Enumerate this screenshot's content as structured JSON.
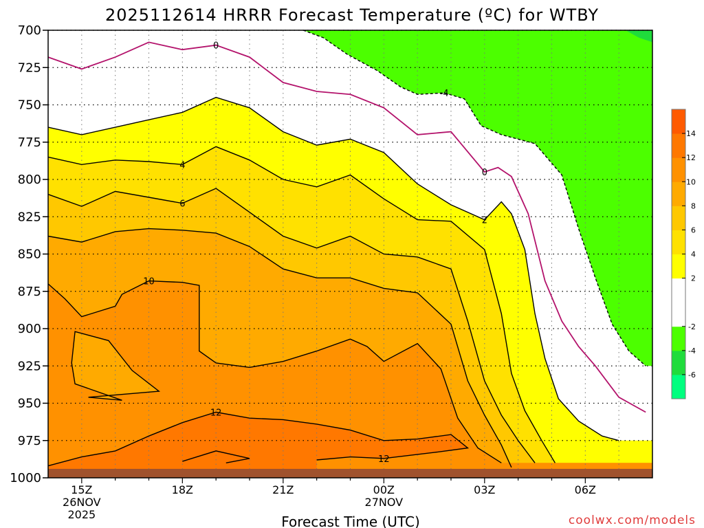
{
  "chart_data": {
    "type": "heatmap",
    "title": "2025112614 HRRR Forecast Temperature (ºC) for WTBY",
    "xlabel": "Forecast Time (UTC)",
    "ylabel": "",
    "credit": "coolwx.com/models",
    "y_axis": {
      "ticks": [
        700,
        725,
        750,
        775,
        800,
        825,
        850,
        875,
        900,
        925,
        950,
        975,
        1000
      ],
      "ylim": [
        1000,
        700
      ],
      "grid": true
    },
    "x_axis": {
      "ticks": [
        {
          "hour": 15,
          "label": "15Z",
          "date": "26NOV",
          "year": "2025"
        },
        {
          "hour": 18,
          "label": "18Z",
          "date": "",
          "year": ""
        },
        {
          "hour": 21,
          "label": "21Z",
          "date": "",
          "year": ""
        },
        {
          "hour": 24,
          "label": "00Z",
          "date": "27NOV",
          "year": ""
        },
        {
          "hour": 27,
          "label": "03Z",
          "date": "",
          "year": ""
        },
        {
          "hour": 30,
          "label": "06Z",
          "date": "",
          "year": ""
        }
      ],
      "xlim": [
        14,
        32
      ]
    },
    "colorbar": {
      "levels": [
        -8,
        -6,
        -4,
        -2,
        0,
        2,
        4,
        6,
        8,
        10,
        12,
        14,
        16
      ],
      "labels": [
        "-6",
        "-4",
        "-2",
        "2",
        "4",
        "6",
        "8",
        "10",
        "12",
        "14"
      ],
      "colors": [
        "#00ff7f",
        "#1fdc3c",
        "#4cff00",
        "#ffffff",
        "#ffffff",
        "#ffff00",
        "#ffe100",
        "#ffc800",
        "#ffaa00",
        "#ff9100",
        "#ff7800",
        "#ff5a00"
      ]
    },
    "series": [
      {
        "level": -4,
        "style": "dashed",
        "color": "#000000",
        "label": "-4",
        "points": [
          [
            21.6,
            700
          ],
          [
            22.2,
            705
          ],
          [
            22.9,
            716
          ],
          [
            23.8,
            727
          ],
          [
            24.5,
            738
          ],
          [
            25.0,
            743
          ],
          [
            25.8,
            742
          ],
          [
            26.4,
            746
          ],
          [
            26.9,
            764
          ],
          [
            27.5,
            770
          ],
          [
            28.5,
            776
          ],
          [
            29.3,
            797
          ],
          [
            29.8,
            833
          ],
          [
            30.3,
            866
          ],
          [
            30.8,
            897
          ],
          [
            31.3,
            915
          ],
          [
            31.8,
            925
          ]
        ]
      },
      {
        "level": 0,
        "style": "solid",
        "color": "#b3126b",
        "label": "0",
        "points": [
          [
            14.0,
            718
          ],
          [
            15.0,
            726
          ],
          [
            16.0,
            718
          ],
          [
            17.0,
            708
          ],
          [
            18.0,
            713
          ],
          [
            19.0,
            710
          ],
          [
            20.0,
            718
          ],
          [
            21.0,
            735
          ],
          [
            22.0,
            741
          ],
          [
            23.0,
            743
          ],
          [
            24.0,
            752
          ],
          [
            25.0,
            770
          ],
          [
            26.0,
            768
          ],
          [
            27.0,
            795
          ],
          [
            27.4,
            792
          ],
          [
            27.8,
            798
          ],
          [
            28.3,
            823
          ],
          [
            28.8,
            868
          ],
          [
            29.3,
            895
          ],
          [
            29.8,
            912
          ],
          [
            30.3,
            925
          ],
          [
            31.0,
            946
          ],
          [
            31.8,
            956
          ]
        ]
      },
      {
        "level": 2,
        "style": "solid",
        "color": "#000000",
        "label": "2",
        "points": [
          [
            14.0,
            765
          ],
          [
            15.0,
            770
          ],
          [
            16.0,
            765
          ],
          [
            17.0,
            760
          ],
          [
            18.0,
            755
          ],
          [
            19.0,
            745
          ],
          [
            20.0,
            752
          ],
          [
            21.0,
            768
          ],
          [
            22.0,
            777
          ],
          [
            23.0,
            773
          ],
          [
            24.0,
            782
          ],
          [
            25.0,
            803
          ],
          [
            26.0,
            817
          ],
          [
            27.0,
            827
          ],
          [
            27.5,
            815
          ],
          [
            27.8,
            823
          ],
          [
            28.2,
            847
          ],
          [
            28.5,
            890
          ],
          [
            28.8,
            920
          ],
          [
            29.2,
            947
          ],
          [
            29.8,
            962
          ],
          [
            30.5,
            972
          ],
          [
            31.0,
            975
          ]
        ]
      },
      {
        "level": 4,
        "style": "solid",
        "color": "#000000",
        "label": "4",
        "points": [
          [
            14.0,
            785
          ],
          [
            15.0,
            790
          ],
          [
            16.0,
            787
          ],
          [
            17.0,
            788
          ],
          [
            18.0,
            790
          ],
          [
            19.0,
            778
          ],
          [
            20.0,
            787
          ],
          [
            21.0,
            800
          ],
          [
            22.0,
            805
          ],
          [
            23.0,
            797
          ],
          [
            24.0,
            813
          ],
          [
            25.0,
            827
          ],
          [
            26.0,
            828
          ],
          [
            27.0,
            847
          ],
          [
            27.5,
            890
          ],
          [
            27.8,
            930
          ],
          [
            28.2,
            955
          ],
          [
            28.7,
            975
          ],
          [
            29.1,
            990
          ]
        ]
      },
      {
        "level": 6,
        "style": "solid",
        "color": "#000000",
        "label": "6",
        "points": [
          [
            14.0,
            810
          ],
          [
            15.0,
            818
          ],
          [
            16.0,
            808
          ],
          [
            17.0,
            812
          ],
          [
            18.0,
            816
          ],
          [
            19.0,
            806
          ],
          [
            20.0,
            822
          ],
          [
            21.0,
            838
          ],
          [
            22.0,
            846
          ],
          [
            23.0,
            838
          ],
          [
            24.0,
            850
          ],
          [
            25.0,
            852
          ],
          [
            26.0,
            860
          ],
          [
            26.5,
            895
          ],
          [
            27.0,
            935
          ],
          [
            27.5,
            958
          ],
          [
            28.0,
            975
          ],
          [
            28.5,
            990
          ]
        ]
      },
      {
        "level": 8,
        "style": "solid",
        "color": "#000000",
        "label": "8",
        "points": [
          [
            14.0,
            838
          ],
          [
            15.0,
            842
          ],
          [
            16.0,
            835
          ],
          [
            17.0,
            833
          ],
          [
            18.0,
            834
          ],
          [
            19.0,
            836
          ],
          [
            20.0,
            845
          ],
          [
            21.0,
            860
          ],
          [
            22.0,
            866
          ],
          [
            23.0,
            866
          ],
          [
            24.0,
            873
          ],
          [
            25.0,
            876
          ],
          [
            26.0,
            897
          ],
          [
            26.5,
            935
          ],
          [
            27.0,
            958
          ],
          [
            27.5,
            978
          ],
          [
            27.8,
            993
          ]
        ]
      },
      {
        "level": 10,
        "style": "solid",
        "color": "#000000",
        "label": "10",
        "points": [
          [
            14.0,
            870
          ],
          [
            14.5,
            880
          ],
          [
            15.0,
            892
          ],
          [
            16.0,
            885
          ],
          [
            16.2,
            877
          ],
          [
            17.0,
            868
          ],
          [
            18.0,
            869
          ],
          [
            18.5,
            871
          ],
          [
            18.5,
            915
          ],
          [
            19.0,
            923
          ],
          [
            20.0,
            926
          ],
          [
            21.0,
            922
          ],
          [
            22.0,
            915
          ],
          [
            23.0,
            907
          ],
          [
            23.5,
            912
          ],
          [
            24.0,
            922
          ],
          [
            25.0,
            910
          ],
          [
            25.7,
            927
          ],
          [
            26.2,
            960
          ],
          [
            26.8,
            980
          ],
          [
            27.5,
            990
          ]
        ]
      },
      {
        "level": 10,
        "style": "solid",
        "color": "#000000",
        "label": "",
        "points": [
          [
            14.8,
            902
          ],
          [
            15.8,
            908
          ],
          [
            16.5,
            928
          ],
          [
            17.3,
            942
          ],
          [
            15.2,
            946
          ],
          [
            16.2,
            948
          ],
          [
            14.8,
            937
          ],
          [
            14.7,
            923
          ],
          [
            14.8,
            902
          ]
        ]
      },
      {
        "level": 12,
        "style": "solid",
        "color": "#000000",
        "label": "12",
        "points": [
          [
            14.0,
            992
          ],
          [
            15.0,
            986
          ],
          [
            16.0,
            982
          ],
          [
            17.0,
            972
          ],
          [
            18.0,
            963
          ],
          [
            19.0,
            956
          ],
          [
            20.0,
            960
          ],
          [
            21.0,
            961
          ],
          [
            22.0,
            964
          ],
          [
            23.0,
            968
          ],
          [
            24.0,
            975
          ],
          [
            25.0,
            974
          ],
          [
            26.0,
            971
          ],
          [
            26.5,
            980
          ],
          [
            25.5,
            983
          ],
          [
            24.0,
            987
          ],
          [
            23.0,
            986
          ],
          [
            22.0,
            988
          ]
        ]
      },
      {
        "level": 12,
        "style": "solid",
        "color": "#000000",
        "label": "",
        "points": [
          [
            18.0,
            989
          ],
          [
            19.0,
            982
          ],
          [
            20.0,
            987
          ],
          [
            19.3,
            990
          ]
        ]
      }
    ],
    "annotations": [
      {
        "text": "0",
        "x": 19.0,
        "y": 710
      },
      {
        "text": "-4",
        "x": 25.8,
        "y": 742
      },
      {
        "text": "4",
        "x": 18.0,
        "y": 790
      },
      {
        "text": "0",
        "x": 27.0,
        "y": 795
      },
      {
        "text": "6",
        "x": 18.0,
        "y": 816
      },
      {
        "text": "2",
        "x": 27.0,
        "y": 827
      },
      {
        "text": "10",
        "x": 17.0,
        "y": 868
      },
      {
        "text": "12",
        "x": 19.0,
        "y": 956
      },
      {
        "text": "12",
        "x": 24.0,
        "y": 987
      }
    ],
    "terrain": {
      "color": "#a0522d",
      "surface_pressure": 994
    }
  }
}
